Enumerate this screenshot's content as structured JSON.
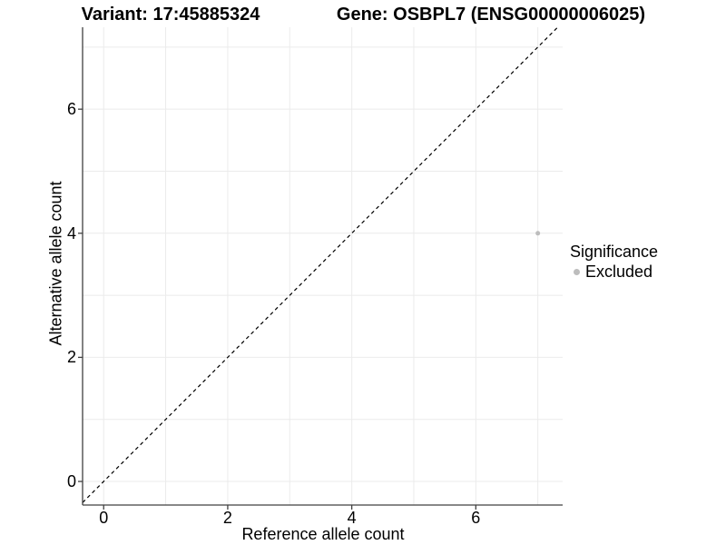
{
  "page": {
    "background": "#ffffff"
  },
  "header": {
    "left_title": "Variant: 17:45885324",
    "right_title": "Gene: OSBPL7 (ENSG00000006025)"
  },
  "legend": {
    "title": "Significance",
    "items": [
      {
        "label": "Excluded",
        "color": "#bdbdbd"
      }
    ]
  },
  "chart_data": {
    "type": "scatter",
    "xlabel": "Reference allele count",
    "ylabel": "Alternative allele count",
    "xlim": [
      -0.34,
      7.4
    ],
    "ylim": [
      -0.38,
      7.32
    ],
    "x_ticks": [
      0,
      2,
      4,
      6
    ],
    "y_ticks": [
      0,
      2,
      4,
      6
    ],
    "gridlines": [
      0,
      1,
      2,
      3,
      4,
      5,
      6,
      7
    ],
    "grid_on": true,
    "grid_color": "#ebebeb",
    "axis_color": "#404040",
    "reference_line": {
      "type": "identity",
      "style": "dashed",
      "color": "#000000"
    },
    "series": [
      {
        "name": "Excluded",
        "color": "#bdbdbd",
        "point_size": 2.5,
        "points": [
          [
            7,
            4
          ]
        ]
      }
    ],
    "legend_position": "right"
  }
}
